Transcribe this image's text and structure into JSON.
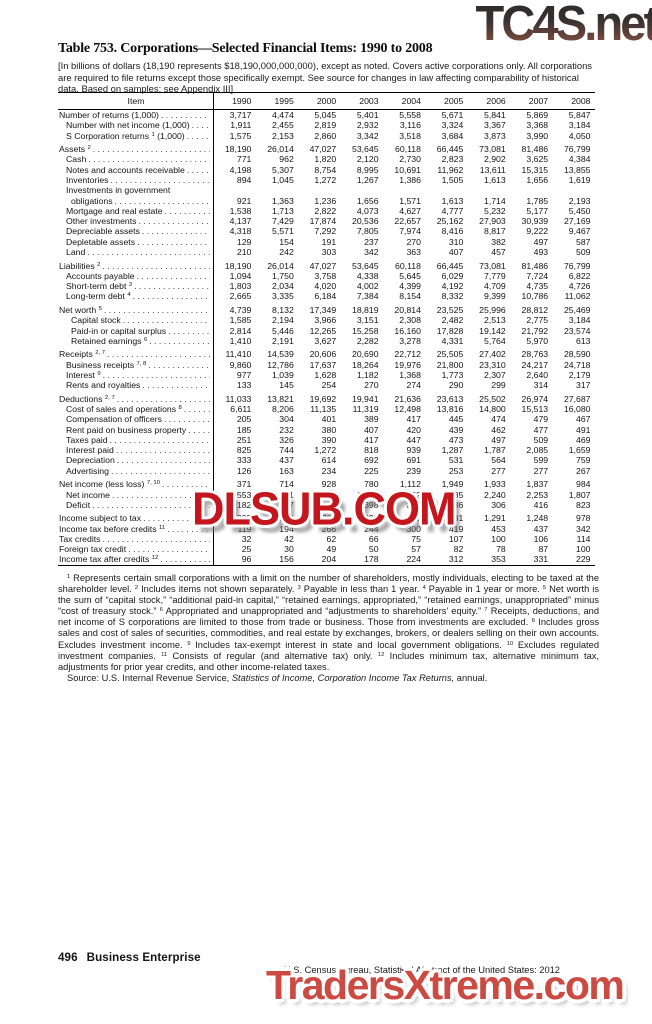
{
  "header": {
    "title": "Table 753. Corporations—Selected Financial Items: 1990 to 2008",
    "intro": "[In billions of dollars (18,190 represents $18,190,000,000,000), except as noted. Covers active corporations only. All corporations are required to file returns except those specifically exempt. See source for changes in law affecting comparability of historical data. Based on samples; see Appendix III]"
  },
  "colors": {
    "watermark_mid_red": "#c4161c",
    "watermark_bottom_red": "#cb4a42",
    "watermark_top_gradient_bottom": "#96604c",
    "rule_black": "#000000"
  },
  "table": {
    "item_header": "Item",
    "years": [
      "1990",
      "1995",
      "2000",
      "2003",
      "2004",
      "2005",
      "2006",
      "2007",
      "2008"
    ],
    "sections": [
      {
        "rows": [
          {
            "pre": "Number of returns (1,000)",
            "indent": 0,
            "values": [
              "3,717",
              "4,474",
              "5,045",
              "5,401",
              "5,558",
              "5,671",
              "5,841",
              "5,869",
              "5,847"
            ]
          },
          {
            "pre": "Number with net income (1,000)",
            "indent": 1,
            "values": [
              "1,911",
              "2,455",
              "2,819",
              "2,932",
              "3,116",
              "3,324",
              "3,367",
              "3,368",
              "3,184"
            ]
          },
          {
            "pre": "S Corporation returns ",
            "sup": "1",
            "post": " (1,000)",
            "indent": 1,
            "values": [
              "1,575",
              "2,153",
              "2,860",
              "3,342",
              "3,518",
              "3,684",
              "3,873",
              "3,990",
              "4,050"
            ]
          }
        ]
      },
      {
        "rows": [
          {
            "pre": "Assets ",
            "sup": "2",
            "indent": 0,
            "values": [
              "18,190",
              "26,014",
              "47,027",
              "53,645",
              "60,118",
              "66,445",
              "73,081",
              "81,486",
              "76,799"
            ]
          },
          {
            "pre": "Cash",
            "indent": 1,
            "values": [
              "771",
              "962",
              "1,820",
              "2,120",
              "2,730",
              "2,823",
              "2,902",
              "3,625",
              "4,384"
            ]
          },
          {
            "pre": "Notes and accounts receivable",
            "indent": 1,
            "values": [
              "4,198",
              "5,307",
              "8,754",
              "8,995",
              "10,691",
              "11,962",
              "13,611",
              "15,315",
              "13,855"
            ]
          },
          {
            "pre": "Inventories",
            "indent": 1,
            "values": [
              "894",
              "1,045",
              "1,272",
              "1,267",
              "1,386",
              "1,505",
              "1,613",
              "1,656",
              "1,619"
            ]
          },
          {
            "pre": "Investments in government",
            "indent": 1,
            "labelOnly": true
          },
          {
            "pre": "obligations",
            "indent": 2,
            "values": [
              "921",
              "1,363",
              "1,236",
              "1,656",
              "1,571",
              "1,613",
              "1,714",
              "1,785",
              "2,193"
            ]
          },
          {
            "pre": "Mortgage and real estate",
            "indent": 1,
            "values": [
              "1,538",
              "1,713",
              "2,822",
              "4,073",
              "4,627",
              "4,777",
              "5,232",
              "5,177",
              "5,450"
            ]
          },
          {
            "pre": "Other investments",
            "indent": 1,
            "values": [
              "4,137",
              "7,429",
              "17,874",
              "20,536",
              "22,657",
              "25,162",
              "27,903",
              "30,939",
              "27,169"
            ]
          },
          {
            "pre": "Depreciable assets",
            "indent": 1,
            "values": [
              "4,318",
              "5,571",
              "7,292",
              "7,805",
              "7,974",
              "8,416",
              "8,817",
              "9,222",
              "9,467"
            ]
          },
          {
            "pre": "Depletable assets",
            "indent": 1,
            "values": [
              "129",
              "154",
              "191",
              "237",
              "270",
              "310",
              "382",
              "497",
              "587"
            ]
          },
          {
            "pre": "Land",
            "indent": 1,
            "values": [
              "210",
              "242",
              "303",
              "342",
              "363",
              "407",
              "457",
              "493",
              "509"
            ]
          }
        ]
      },
      {
        "rows": [
          {
            "pre": "Liabilities ",
            "sup": "2",
            "indent": 0,
            "values": [
              "18,190",
              "26,014",
              "47,027",
              "53,645",
              "60,118",
              "66,445",
              "73,081",
              "81,486",
              "76,799"
            ]
          },
          {
            "pre": "Accounts payable",
            "indent": 1,
            "values": [
              "1,094",
              "1,750",
              "3,758",
              "4,338",
              "5,645",
              "6,029",
              "7,779",
              "7,724",
              "6,822"
            ]
          },
          {
            "pre": "Short-term debt ",
            "sup": "3",
            "indent": 1,
            "values": [
              "1,803",
              "2,034",
              "4,020",
              "4,002",
              "4,399",
              "4,192",
              "4,709",
              "4,735",
              "4,726"
            ]
          },
          {
            "pre": "Long-term debt ",
            "sup": "4",
            "indent": 1,
            "values": [
              "2,665",
              "3,335",
              "6,184",
              "7,384",
              "8,154",
              "8,332",
              "9,399",
              "10,786",
              "11,062"
            ]
          }
        ]
      },
      {
        "rows": [
          {
            "pre": "Net worth ",
            "sup": "5",
            "indent": 0,
            "values": [
              "4,739",
              "8,132",
              "17,349",
              "18,819",
              "20,814",
              "23,525",
              "25,996",
              "28,812",
              "25,469"
            ]
          },
          {
            "pre": "Capital stock",
            "indent": 2,
            "values": [
              "1,585",
              "2,194",
              "3,966",
              "3,151",
              "2,308",
              "2,482",
              "2,513",
              "2,775",
              "3,184"
            ]
          },
          {
            "pre": "Paid-in or capital surplus",
            "indent": 2,
            "values": [
              "2,814",
              "5,446",
              "12,265",
              "15,258",
              "16,160",
              "17,828",
              "19,142",
              "21,792",
              "23,574"
            ]
          },
          {
            "pre": "Retained earnings ",
            "sup": "6",
            "indent": 2,
            "values": [
              "1,410",
              "2,191",
              "3,627",
              "2,282",
              "3,278",
              "4,331",
              "5,764",
              "5,970",
              "613"
            ]
          }
        ]
      },
      {
        "rows": [
          {
            "pre": "Receipts ",
            "sup": "2, 7",
            "indent": 0,
            "values": [
              "11,410",
              "14,539",
              "20,606",
              "20,690",
              "22,712",
              "25,505",
              "27,402",
              "28,763",
              "28,590"
            ]
          },
          {
            "pre": "Business receipts ",
            "sup": "7, 8",
            "indent": 1,
            "values": [
              "9,860",
              "12,786",
              "17,637",
              "18,264",
              "19,976",
              "21,800",
              "23,310",
              "24,217",
              "24,718"
            ]
          },
          {
            "pre": "Interest ",
            "sup": "9",
            "indent": 1,
            "values": [
              "977",
              "1,039",
              "1,628",
              "1,182",
              "1,368",
              "1,773",
              "2,307",
              "2,640",
              "2,179"
            ]
          },
          {
            "pre": "Rents and royalties",
            "indent": 1,
            "values": [
              "133",
              "145",
              "254",
              "270",
              "274",
              "290",
              "299",
              "314",
              "317"
            ]
          }
        ]
      },
      {
        "rows": [
          {
            "pre": "Deductions ",
            "sup": "2, 7",
            "indent": 0,
            "values": [
              "11,033",
              "13,821",
              "19,692",
              "19,941",
              "21,636",
              "23,613",
              "25,502",
              "26,974",
              "27,687"
            ]
          },
          {
            "pre": "Cost of sales and operations ",
            "sup": "8",
            "indent": 1,
            "values": [
              "6,611",
              "8,206",
              "11,135",
              "11,319",
              "12,498",
              "13,816",
              "14,800",
              "15,513",
              "16,080"
            ]
          },
          {
            "pre": "Compensation of officers",
            "indent": 1,
            "values": [
              "205",
              "304",
              "401",
              "389",
              "417",
              "445",
              "474",
              "479",
              "467"
            ]
          },
          {
            "pre": "Rent paid on business property",
            "indent": 1,
            "values": [
              "185",
              "232",
              "380",
              "407",
              "420",
              "439",
              "462",
              "477",
              "491"
            ]
          },
          {
            "pre": "Taxes paid",
            "indent": 1,
            "values": [
              "251",
              "326",
              "390",
              "417",
              "447",
              "473",
              "497",
              "509",
              "469"
            ]
          },
          {
            "pre": "Interest paid",
            "indent": 1,
            "values": [
              "825",
              "744",
              "1,272",
              "818",
              "939",
              "1,287",
              "1,787",
              "2,085",
              "1,659"
            ]
          },
          {
            "pre": "Depreciation",
            "indent": 1,
            "values": [
              "333",
              "437",
              "614",
              "692",
              "691",
              "531",
              "564",
              "599",
              "759"
            ]
          },
          {
            "pre": "Advertising",
            "indent": 1,
            "values": [
              "126",
              "163",
              "234",
              "225",
              "239",
              "253",
              "277",
              "277",
              "267"
            ]
          }
        ]
      },
      {
        "rows": [
          {
            "pre": "Net income (less loss) ",
            "sup": "7, 10",
            "indent": 0,
            "values": [
              "371",
              "714",
              "928",
              "780",
              "1,112",
              "1,949",
              "1,933",
              "1,837",
              "984"
            ]
          },
          {
            "pre": "Net income",
            "indent": 1,
            "values": [
              "553",
              "931",
              "1,337",
              "1,178",
              "1,452",
              "2,235",
              "2,240",
              "2,253",
              "1,807"
            ]
          },
          {
            "pre": "Deficit",
            "indent": 1,
            "values": [
              "182",
              "217",
              "409",
              "398",
              "340",
              "286",
              "306",
              "416",
              "823"
            ]
          }
        ]
      },
      {
        "rows": [
          {
            "pre": "Income subject to tax",
            "indent": 0,
            "values": [
              "399",
              "564",
              "761",
              "695",
              "890",
              "1,181",
              "1,291",
              "1,248",
              "978"
            ]
          },
          {
            "pre": "Income tax before credits ",
            "sup": "11",
            "indent": 0,
            "values": [
              "119",
              "194",
              "266",
              "244",
              "300",
              "419",
              "453",
              "437",
              "342"
            ]
          },
          {
            "pre": "Tax credits",
            "indent": 0,
            "values": [
              "32",
              "42",
              "62",
              "66",
              "75",
              "107",
              "100",
              "106",
              "114"
            ]
          },
          {
            "pre": "Foreign tax credit",
            "indent": 0,
            "values": [
              "25",
              "30",
              "49",
              "50",
              "57",
              "82",
              "78",
              "87",
              "100"
            ]
          },
          {
            "pre": "Income tax after credits ",
            "sup": "12",
            "indent": 0,
            "values": [
              "96",
              "156",
              "204",
              "178",
              "224",
              "312",
              "353",
              "331",
              "229"
            ]
          }
        ]
      }
    ]
  },
  "footnotes": {
    "items": [
      {
        "n": "1",
        "t": "Represents certain small corporations with a limit on the number of shareholders, mostly individuals, electing to be taxed at the shareholder level."
      },
      {
        "n": "2",
        "t": "Includes items not shown separately."
      },
      {
        "n": "3",
        "t": "Payable in less than 1 year."
      },
      {
        "n": "4",
        "t": "Payable in 1 year or more."
      },
      {
        "n": "5",
        "t": "Net worth is the sum of “capital stock,” “additional paid-in capital,” “retained earnings, appropriated,” “retained earnings, unappropriated” minus “cost of treasury stock.”"
      },
      {
        "n": "6",
        "t": "Appropriated and unappropriated and “adjustments to shareholders’ equity.”"
      },
      {
        "n": "7",
        "t": "Receipts, deductions, and net income of S corporations are limited to those from trade or business. Those from investments are excluded."
      },
      {
        "n": "8",
        "t": "Includes gross sales and cost of sales of securities, commodities, and real estate by exchanges, brokers, or dealers selling on their own accounts. Excludes investment income."
      },
      {
        "n": "9",
        "t": "Includes tax-exempt interest in state and local government obligations."
      },
      {
        "n": "10",
        "t": "Excludes regulated investment companies."
      },
      {
        "n": "11",
        "t": "Consists of regular (and alternative tax) only."
      },
      {
        "n": "12",
        "t": "Includes minimum tax, alternative minimum tax, adjustments for prior year credits, and other income-related taxes."
      }
    ],
    "source_pre": "Source: U.S. Internal Revenue Service, ",
    "source_italic": "Statistics of Income, Corporation Income Tax Returns,",
    "source_post": " annual."
  },
  "footer": {
    "page_number": "496",
    "section": "Business Enterprise",
    "source_line": "U.S. Census Bureau, Statistical Abstract of the United States: 2012"
  },
  "watermarks": {
    "top": "TC4S.net",
    "middle": "DLSUB.COM",
    "bottom": "TradersXtreme.com"
  }
}
